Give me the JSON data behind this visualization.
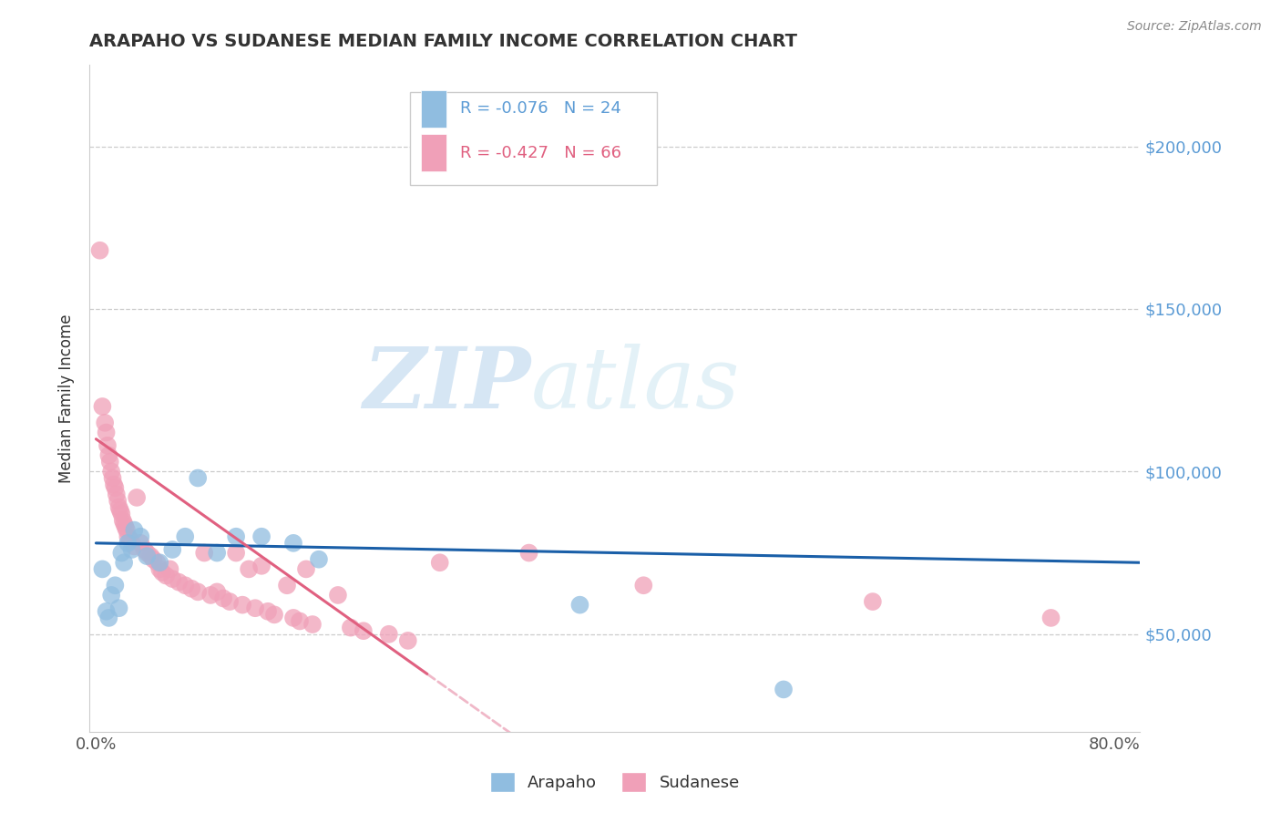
{
  "title": "ARAPAHO VS SUDANESE MEDIAN FAMILY INCOME CORRELATION CHART",
  "source": "Source: ZipAtlas.com",
  "ylabel": "Median Family Income",
  "xlim": [
    -0.005,
    0.82
  ],
  "ylim": [
    20000,
    225000
  ],
  "yticks": [
    50000,
    100000,
    150000,
    200000
  ],
  "ytick_labels": [
    "$50,000",
    "$100,000",
    "$150,000",
    "$200,000"
  ],
  "xticks": [
    0.0,
    0.1,
    0.2,
    0.3,
    0.4,
    0.5,
    0.6,
    0.7,
    0.8
  ],
  "arapaho_color": "#90bde0",
  "sudanese_color": "#f0a0b8",
  "trend_arapaho_color": "#1a5fa8",
  "trend_sudanese_solid_color": "#e06080",
  "trend_sudanese_dashed_color": "#f0b8c8",
  "legend_R_arapaho": "R = -0.076",
  "legend_N_arapaho": "N = 24",
  "legend_R_sudanese": "R = -0.427",
  "legend_N_sudanese": "N = 66",
  "watermark_zip": "ZIP",
  "watermark_atlas": "atlas",
  "arapaho_x": [
    0.005,
    0.008,
    0.01,
    0.012,
    0.015,
    0.018,
    0.02,
    0.022,
    0.025,
    0.028,
    0.03,
    0.035,
    0.04,
    0.05,
    0.06,
    0.07,
    0.08,
    0.095,
    0.11,
    0.13,
    0.155,
    0.175,
    0.38,
    0.54
  ],
  "arapaho_y": [
    70000,
    57000,
    55000,
    62000,
    65000,
    58000,
    75000,
    72000,
    78000,
    76000,
    82000,
    80000,
    74000,
    72000,
    76000,
    80000,
    98000,
    75000,
    80000,
    80000,
    78000,
    73000,
    59000,
    33000
  ],
  "sudanese_x": [
    0.003,
    0.005,
    0.007,
    0.008,
    0.009,
    0.01,
    0.011,
    0.012,
    0.013,
    0.014,
    0.015,
    0.016,
    0.017,
    0.018,
    0.019,
    0.02,
    0.021,
    0.022,
    0.023,
    0.024,
    0.025,
    0.027,
    0.03,
    0.032,
    0.035,
    0.038,
    0.04,
    0.043,
    0.045,
    0.048,
    0.05,
    0.052,
    0.055,
    0.058,
    0.06,
    0.065,
    0.07,
    0.075,
    0.08,
    0.085,
    0.09,
    0.095,
    0.1,
    0.105,
    0.11,
    0.115,
    0.12,
    0.125,
    0.13,
    0.135,
    0.14,
    0.15,
    0.155,
    0.16,
    0.165,
    0.17,
    0.19,
    0.2,
    0.21,
    0.23,
    0.245,
    0.27,
    0.34,
    0.43,
    0.61,
    0.75
  ],
  "sudanese_y": [
    168000,
    120000,
    115000,
    112000,
    108000,
    105000,
    103000,
    100000,
    98000,
    96000,
    95000,
    93000,
    91000,
    89000,
    88000,
    87000,
    85000,
    84000,
    83000,
    82000,
    80000,
    79000,
    77000,
    92000,
    78000,
    76000,
    75000,
    74000,
    73000,
    72000,
    70000,
    69000,
    68000,
    70000,
    67000,
    66000,
    65000,
    64000,
    63000,
    75000,
    62000,
    63000,
    61000,
    60000,
    75000,
    59000,
    70000,
    58000,
    71000,
    57000,
    56000,
    65000,
    55000,
    54000,
    70000,
    53000,
    62000,
    52000,
    51000,
    50000,
    48000,
    72000,
    75000,
    65000,
    60000,
    55000
  ],
  "trend_arapaho_x0": 0.0,
  "trend_arapaho_x1": 0.82,
  "trend_sudanese_x0": 0.0,
  "trend_sudanese_solid_x1": 0.26,
  "trend_sudanese_dashed_x0": 0.26,
  "trend_sudanese_x1": 0.5
}
